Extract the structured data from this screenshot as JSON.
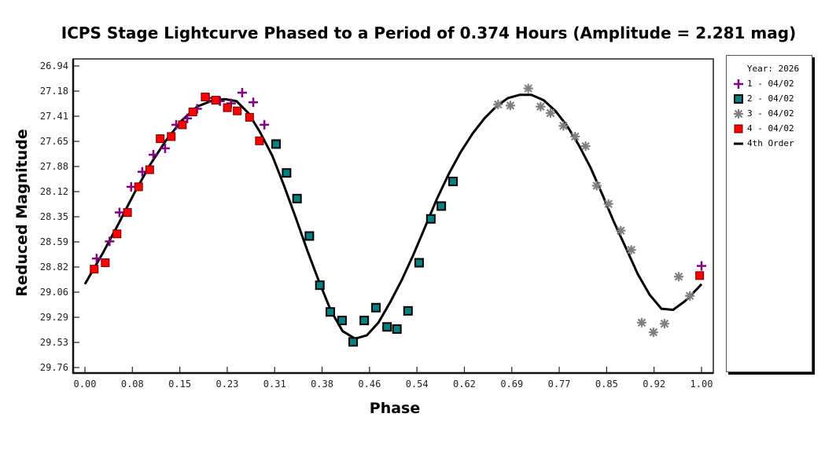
{
  "chart_data": {
    "type": "scatter",
    "title": "ICPS Stage Lightcurve Phased to a Period of 0.374 Hours (Amplitude = 2.281 mag)",
    "xlabel": "Phase",
    "ylabel": "Reduced Magnitude",
    "xlim": [
      0.0,
      1.0
    ],
    "ylim": [
      26.94,
      29.76
    ],
    "y_inverted": true,
    "grid": false,
    "legend_position": "right",
    "legend_title": "Year: 2026",
    "x_ticks": [
      "0.00",
      "0.08",
      "0.15",
      "0.23",
      "0.31",
      "0.38",
      "0.46",
      "0.54",
      "0.62",
      "0.69",
      "0.77",
      "0.85",
      "0.92",
      "1.00"
    ],
    "y_ticks": [
      "26.94",
      "27.18",
      "27.41",
      "27.65",
      "27.88",
      "28.12",
      "28.35",
      "28.59",
      "28.82",
      "29.06",
      "29.29",
      "29.53",
      "29.76"
    ],
    "series": [
      {
        "name": "1 - 04/02",
        "marker": "plus",
        "color": "#800080",
        "x": [
          0.019,
          0.04,
          0.056,
          0.075,
          0.093,
          0.111,
          0.13,
          0.148,
          0.166,
          0.182,
          0.201,
          0.219,
          0.237,
          0.255,
          0.273,
          0.291,
          1.0
        ],
        "y": [
          28.74,
          28.58,
          28.31,
          28.07,
          27.93,
          27.77,
          27.71,
          27.49,
          27.43,
          27.34,
          27.24,
          27.27,
          27.29,
          27.19,
          27.28,
          27.49,
          28.81
        ]
      },
      {
        "name": "2 - 04/02",
        "marker": "square",
        "color": "#008080",
        "x": [
          0.31,
          0.327,
          0.344,
          0.364,
          0.381,
          0.398,
          0.417,
          0.435,
          0.453,
          0.472,
          0.49,
          0.506,
          0.524,
          0.542,
          0.561,
          0.578,
          0.597
        ],
        "y": [
          27.67,
          27.94,
          28.18,
          28.53,
          28.99,
          29.24,
          29.32,
          29.52,
          29.32,
          29.2,
          29.38,
          29.4,
          29.23,
          28.78,
          28.37,
          28.25,
          28.02
        ]
      },
      {
        "name": "3 - 04/02",
        "marker": "asterisk",
        "color": "#808080",
        "x": [
          0.67,
          0.69,
          0.719,
          0.739,
          0.755,
          0.776,
          0.795,
          0.812,
          0.83,
          0.849,
          0.869,
          0.886,
          0.903,
          0.922,
          0.94,
          0.963,
          0.981
        ],
        "y": [
          27.3,
          27.31,
          27.15,
          27.32,
          27.38,
          27.5,
          27.6,
          27.69,
          28.06,
          28.23,
          28.48,
          28.66,
          29.34,
          29.43,
          29.35,
          28.91,
          29.09
        ]
      },
      {
        "name": "4 - 04/02",
        "marker": "square",
        "color": "#ff0000",
        "x": [
          0.015,
          0.033,
          0.052,
          0.069,
          0.087,
          0.105,
          0.122,
          0.14,
          0.158,
          0.175,
          0.195,
          0.212,
          0.231,
          0.247,
          0.267,
          0.283,
          0.997
        ],
        "y": [
          28.84,
          28.78,
          28.51,
          28.31,
          28.07,
          27.91,
          27.62,
          27.6,
          27.49,
          27.37,
          27.23,
          27.26,
          27.33,
          27.36,
          27.42,
          27.64,
          28.9
        ]
      },
      {
        "name": "4th Order",
        "marker": "line",
        "color": "#000000",
        "x": [
          0.0,
          0.029,
          0.055,
          0.08,
          0.106,
          0.131,
          0.157,
          0.182,
          0.208,
          0.227,
          0.246,
          0.265,
          0.284,
          0.304,
          0.323,
          0.342,
          0.361,
          0.38,
          0.399,
          0.418,
          0.438,
          0.457,
          0.476,
          0.495,
          0.514,
          0.533,
          0.552,
          0.571,
          0.591,
          0.61,
          0.629,
          0.648,
          0.667,
          0.686,
          0.705,
          0.724,
          0.744,
          0.763,
          0.782,
          0.801,
          0.82,
          0.839,
          0.858,
          0.878,
          0.897,
          0.916,
          0.935,
          0.954,
          0.973,
          0.992,
          1.0
        ],
        "y": [
          28.98,
          28.69,
          28.41,
          28.13,
          27.86,
          27.64,
          27.45,
          27.32,
          27.26,
          27.25,
          27.27,
          27.38,
          27.56,
          27.78,
          28.06,
          28.36,
          28.67,
          28.96,
          29.23,
          29.42,
          29.49,
          29.46,
          29.34,
          29.15,
          28.94,
          28.7,
          28.44,
          28.18,
          27.94,
          27.74,
          27.57,
          27.43,
          27.32,
          27.24,
          27.21,
          27.21,
          27.26,
          27.36,
          27.5,
          27.68,
          27.89,
          28.14,
          28.4,
          28.65,
          28.89,
          29.08,
          29.21,
          29.22,
          29.14,
          29.03,
          28.98
        ]
      }
    ]
  }
}
